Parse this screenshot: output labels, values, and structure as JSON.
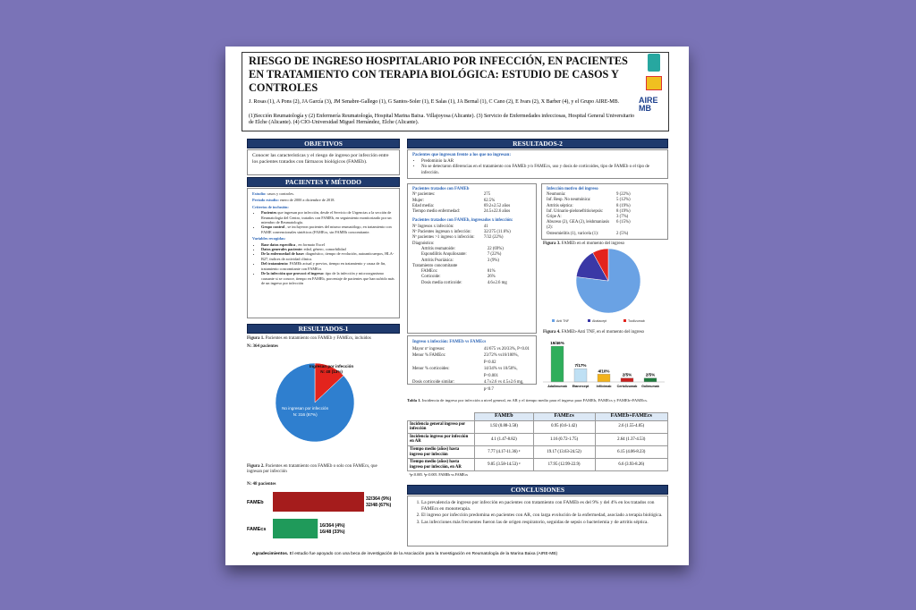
{
  "header": {
    "title": "RIESGO DE INGRESO HOSPITALARIO POR INFECCIÓN, EN PACIENTES EN TRATAMIENTO CON TERAPIA BIOLÓGICA: ESTUDIO DE CASOS Y CONTROLES",
    "authors": "J. Rosas (1), A Pons (2), JA García (3), JM Senabre-Gallego (1), G Santos-Soler (1), E Salas (1), JA Bernal (1), C Cano (2), E Ivars (2), X Barber (4), y el Grupo AIRE-MB.",
    "affiliations": "(1)Sección Reumatología y (2) Enfermería Reumatología, Hospital Marina Baixa. Villajoyosa (Alicante). (3) Servicio de Enfermedades infecciosas, Hospital General Universitario de Elche (Alicante). (4) CIO-Universidad Miguel Hernández, Elche (Alicante).",
    "logo": "AIRE MB"
  },
  "objetivos": {
    "heading": "OBJETIVOS",
    "text": "Conocer las características y el riesgo de ingreso por infección entre los pacientes tratados con fármacos biológicos (FAMEb)."
  },
  "metodo": {
    "heading": "PACIENTES Y MÉTODO",
    "estudio": {
      "label": "Estudio:",
      "text": "casos y controles."
    },
    "periodo": {
      "label": "Periodo estudio:",
      "text": "enero de 2000 a diciembre de 2018."
    },
    "inclusion": {
      "heading": "Criterios de inclusión:",
      "items": [
        {
          "lead": "Pacientes",
          "text": "que ingresan por infección, desde el Servicio de Urgencias a la sección de Reumatología del Centro, tratados con FAMEb, en seguimiento monitorizado por un miembro de Reumatología."
        },
        {
          "lead": "Grupo control",
          "text": ", se incluyeron pacientes del mismo reumatólogo, en tratamiento con FAME convencionales sintéticos (FAMEcs, sin FAMEb concomitante."
        }
      ]
    },
    "variables": {
      "heading": "Variables recogidas:",
      "items": [
        {
          "lead": "Base datos específica",
          "text": ", en formato Excel"
        },
        {
          "lead": "Datos generales paciente:",
          "text": "edad, género, comorbilidad"
        },
        {
          "lead": "De la enfermedad de base:",
          "text": "diagnóstico, tiempo de evolución, autoanticuerpos, HLA-B27, índices de actividad clínica."
        },
        {
          "lead": "Del tratamiento:",
          "text": "FAMEb actual y previos, tiempo en tratamiento y causa de fin, tratamiento concomitante con FAMEcs"
        },
        {
          "lead": "De la infección que provocó el ingreso:",
          "text": "tipo de la infección y microorganismo causante si se conoce, tiempo en FAMEb, porcentaje de pacientes que han sufrido más de un ingreso por infección"
        }
      ]
    }
  },
  "resultados1": {
    "heading": "RESULTADOS-1",
    "fig1": {
      "type": "pie",
      "label": "Figura 1.",
      "caption": "Pacientes en tratamiento con FAMEb y FAMEcs, incluidos",
      "n": "N: 364 pacientes",
      "slices": [
        {
          "name": "Ingresan por infección",
          "value_label": "N: 48 (13%)",
          "value": 13,
          "color": "#e3241d"
        },
        {
          "name": "No ingresan por infección",
          "value_label": "N: 316 (87%)",
          "value": 87,
          "color": "#2f7fcf"
        }
      ]
    },
    "fig2": {
      "type": "bar",
      "label": "Figura 2.",
      "caption": "Pacientes en tratamiento con FAMEb o solo con FAMEcs, que ingresan por infección",
      "n": "N: 48 pacientes",
      "categories": [
        "FAMEb",
        "FAMEcs"
      ],
      "values": [
        67,
        33
      ],
      "value_labels": [
        "32/48 (67%)",
        "16/48 (33%)"
      ],
      "total_labels": [
        "32/364 (9%)",
        "16/364 (4%)"
      ],
      "colors": [
        "#a51c1c",
        "#1f9a5a"
      ]
    }
  },
  "resultados2": {
    "heading": "RESULTADOS-2",
    "intro": {
      "heading": "Pacientes que ingresan frente a los que no ingresan:",
      "items": [
        "Predominio la AR",
        "No se detectaron diferencias en el tratamiento con FAMEb y/o FAMEcs, uso y dosis de corticoides, tipo de FAMEb o el tipo de infección."
      ]
    },
    "fameb": {
      "heading": "Pacientes tratados con FAMEb",
      "rows": [
        [
          "Nº pacientes:",
          "275"
        ],
        [
          "Mujer:",
          "62.5%"
        ],
        [
          "Edad media:",
          "69.2±2.52 años"
        ],
        [
          "Tiempo medio enfermedad:",
          "24.5±22.6 años"
        ]
      ],
      "heading2": "Pacientes tratados con FAMEb, ingresados x infección:",
      "rows2": [
        [
          "Nº Ingresos x infección:",
          "41"
        ],
        [
          "Nº Pacientes ingresan x infección:",
          "32/275 (11.6%)"
        ],
        [
          "Nº pacientes >1 ingreso x infección:",
          "7/32 (22%)"
        ]
      ],
      "diag": "Diagnóstico:",
      "diag_rows": [
        [
          "Artritis reumatoide:",
          "22 (69%)"
        ],
        [
          "Espondilitis Anquilosante:",
          "7 (22%)"
        ],
        [
          "Artritis Psoriásica:",
          "3 (9%)"
        ]
      ],
      "trat": "Tratamiento concomitante",
      "trat_rows": [
        [
          "FAMEcs:",
          "81%"
        ],
        [
          "Corticoide:",
          "26%"
        ],
        [
          "Dosis media corticoide:",
          "4.6±2.6 mg"
        ]
      ]
    },
    "vs": {
      "heading": "Ingreso x infección: FAMEb vs FAMEcs",
      "rows": [
        [
          "Mayor nº ingresos:",
          "41/675 vs 20/33%, P<0.01"
        ],
        [
          "Menor % FAMEcs:",
          "23/72% vs16/100%, P<0.02"
        ],
        [
          "Menor % corticoides:",
          "14/34% vs 10/50%, P<0.001"
        ],
        [
          "Dosis corticoide similar:",
          "4.7±2.6 vs 4.5±2.6 mg, p<0.7"
        ]
      ]
    },
    "motivo": {
      "heading": "Infección motivo del ingreso",
      "rows": [
        [
          "Neumonía:",
          "9 (22%)"
        ],
        [
          "Inf. Resp. No neumónica:",
          "5 (12%)"
        ],
        [
          "Artritis séptica:",
          "8 (19%)"
        ],
        [
          "Inf. Urinario-pielonefritis/sepsis:",
          "8 (19%)"
        ],
        [
          "Gripe A:",
          "3 (7%)"
        ],
        [
          "Absceso (2), GEA (2), leishmaniasis (2):",
          "6 (15%)"
        ],
        [
          "Osteomielitis (1), varicela (1):",
          "2 (5%)"
        ]
      ]
    },
    "fig3": {
      "type": "pie",
      "label": "Figura 3.",
      "caption": "FAMEb en el momento del ingreso",
      "slices": [
        {
          "name": "Anti TNF",
          "value": 77,
          "color": "#6aa2e4"
        },
        {
          "name": "Abatacept",
          "value": 15,
          "color": "#3a38a6"
        },
        {
          "name": "Tocilizumab",
          "value": 8,
          "color": "#e3241d"
        }
      ]
    },
    "fig4": {
      "type": "bar",
      "label": "Figura 4.",
      "caption": "FAMEb-Anti TNF, en el momento del ingreso",
      "categories": [
        "Adalimumab",
        "Etanercept",
        "Infliximab",
        "Certolizumab",
        "Golimumab"
      ],
      "values": [
        46,
        17,
        10,
        5,
        5
      ],
      "value_labels": [
        "19/46%",
        "7/17%",
        "4/10%",
        "2/5%",
        "2/5%"
      ],
      "colors": [
        "#2fae5b",
        "#bfe0f4",
        "#f2b21b",
        "#c8201f",
        "#1f7a3d"
      ]
    },
    "table": {
      "label": "Tabla 1.",
      "caption": "Incidencia de ingreso por infección a nivel general, en AR y el tiempo medio para el ingreso para FAMEb, FAMEcs y FAMEb+FAMEcs.",
      "headers": [
        "FAMEb",
        "FAMEcs",
        "FAMEb+FAMEcs"
      ],
      "rows": [
        [
          "Incidencia general ingreso por infección",
          "1.92 (0.88-3.58)",
          "0.95 (0.6-1.42)",
          "2.6 (1.55-4.05)"
        ],
        [
          "Incidencia ingreso por infección en AR",
          "4.1 (1.47-8.82)",
          "1.16 (0.72-1.75)",
          "2.64 (1.37-4.53)"
        ],
        [
          "Tiempo medio (años) hasta ingreso por infección",
          "7.77 (4.17-11.36) ³",
          "19.17 (13.63-24.52)",
          "6.15 (4.06-8.23)"
        ],
        [
          "Tiempo medio (años) hasta ingreso por infección, en AR",
          "9.05 (3.58-14.53) ³",
          "17.95 (12.99-22.9)",
          "6.6 (3.93-8.26)"
        ]
      ],
      "footnote": "³p<0.005. ³p<0.005. FAMEb vs FAMEcs"
    }
  },
  "conclusiones": {
    "heading": "CONCLUSIONES",
    "items": [
      "La prevalencia de ingreso por infección en pacientes con tratamiento con FAMEb es del 9% y del 4% en los tratados con FAMEcs en monoterapia.",
      "El ingreso por infección predomina en pacientes con AR, con larga evolución de la enfermedad, asociado a terapia biológica.",
      "Las infecciones más frecuentes fueron las de origen respiratorio, seguidas de sepsis o bacteriemia y de artritis séptica."
    ]
  },
  "footer": {
    "lead": "Agradecimientos.",
    "text": "El estudio fue apoyado con una beca de investigación de la Asociación para la Investigación en Reumatología de la Marina Baixa (AIRE-MB)"
  }
}
